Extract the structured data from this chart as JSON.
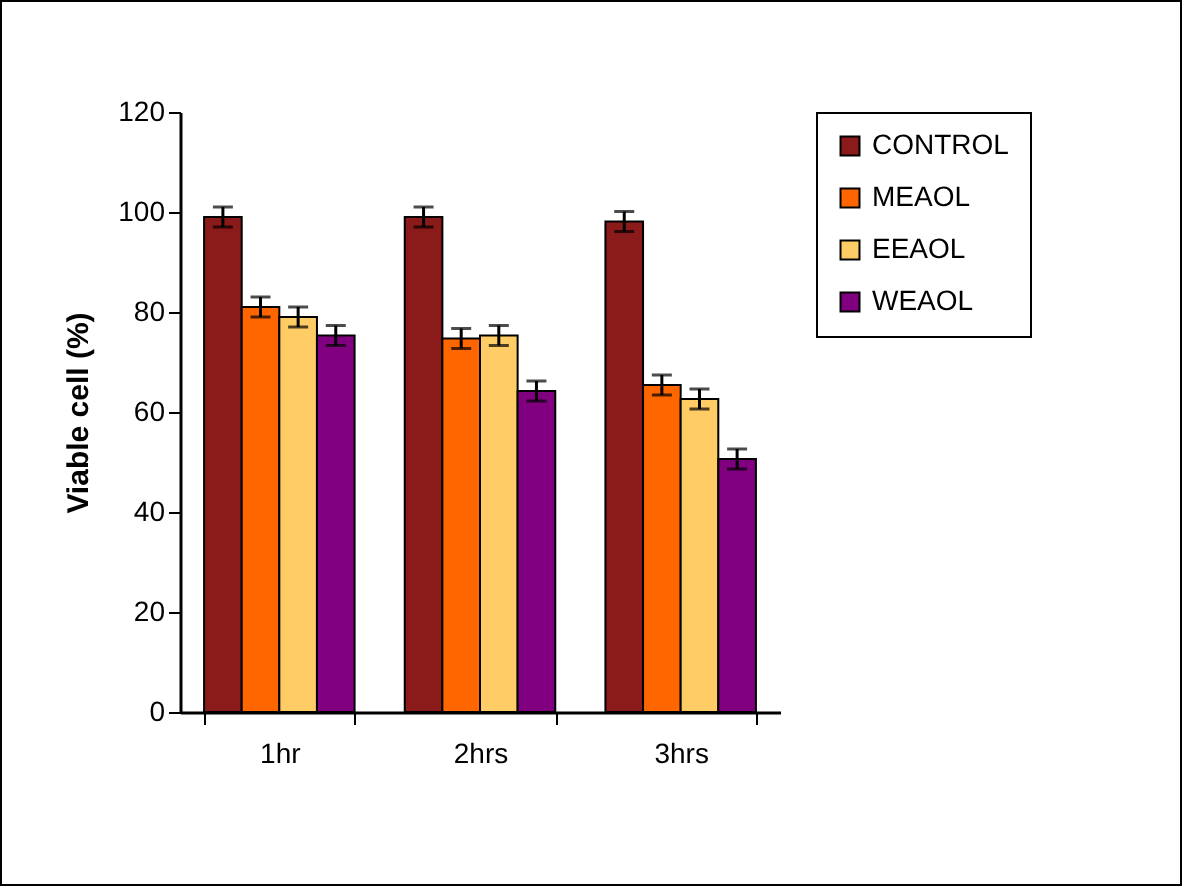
{
  "chart_data": {
    "type": "bar",
    "ylabel": "Viable cell (%)",
    "categories": [
      "1hr",
      "2hrs",
      "3hrs"
    ],
    "series": [
      {
        "name": "CONTROL",
        "color": "#8b1a1a",
        "values": [
          99,
          99,
          98.1
        ],
        "errors": [
          2,
          2,
          2
        ]
      },
      {
        "name": "MEAOL",
        "color": "#ff6600",
        "values": [
          81,
          74.7,
          65.4
        ],
        "errors": [
          2,
          2,
          2
        ]
      },
      {
        "name": "EEAOL",
        "color": "#ffcc66",
        "values": [
          79,
          75.3,
          62.6
        ],
        "errors": [
          2,
          2,
          2
        ]
      },
      {
        "name": "WEAOL",
        "color": "#800080",
        "values": [
          75.3,
          64.2,
          50.6
        ],
        "errors": [
          2,
          2,
          2
        ]
      }
    ],
    "ylim": [
      0,
      120
    ],
    "yticks": [
      0,
      20,
      40,
      60,
      80,
      100,
      120
    ],
    "grid": false,
    "legend": "right"
  }
}
